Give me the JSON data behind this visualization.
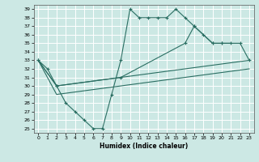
{
  "title": "",
  "xlabel": "Humidex (Indice chaleur)",
  "xlim": [
    -0.5,
    23.5
  ],
  "ylim": [
    24.5,
    39.5
  ],
  "xticks": [
    0,
    1,
    2,
    3,
    4,
    5,
    6,
    7,
    8,
    9,
    10,
    11,
    12,
    13,
    14,
    15,
    16,
    17,
    18,
    19,
    20,
    21,
    22,
    23
  ],
  "yticks": [
    25,
    26,
    27,
    28,
    29,
    30,
    31,
    32,
    33,
    34,
    35,
    36,
    37,
    38,
    39
  ],
  "bg_color": "#cce8e4",
  "grid_color": "#ffffff",
  "line_color": "#2a6e62",
  "line1_x": [
    0,
    1,
    2,
    3,
    4,
    5,
    6,
    7,
    8,
    9,
    10,
    11,
    12,
    13,
    14,
    15,
    16,
    17,
    18,
    19,
    20,
    21
  ],
  "line1_y": [
    33,
    32,
    30,
    28,
    27,
    26,
    25,
    25,
    29,
    33,
    39,
    38,
    38,
    38,
    38,
    39,
    38,
    37,
    36,
    35,
    35,
    35
  ],
  "line2_x": [
    0,
    2,
    9,
    16,
    17,
    19,
    20,
    22,
    23
  ],
  "line2_y": [
    33,
    30,
    31,
    35,
    37,
    35,
    35,
    35,
    33
  ],
  "line3_x": [
    0,
    2,
    23
  ],
  "line3_y": [
    33,
    30,
    33
  ],
  "line4_x": [
    0,
    2,
    23
  ],
  "line4_y": [
    33,
    29,
    32
  ]
}
